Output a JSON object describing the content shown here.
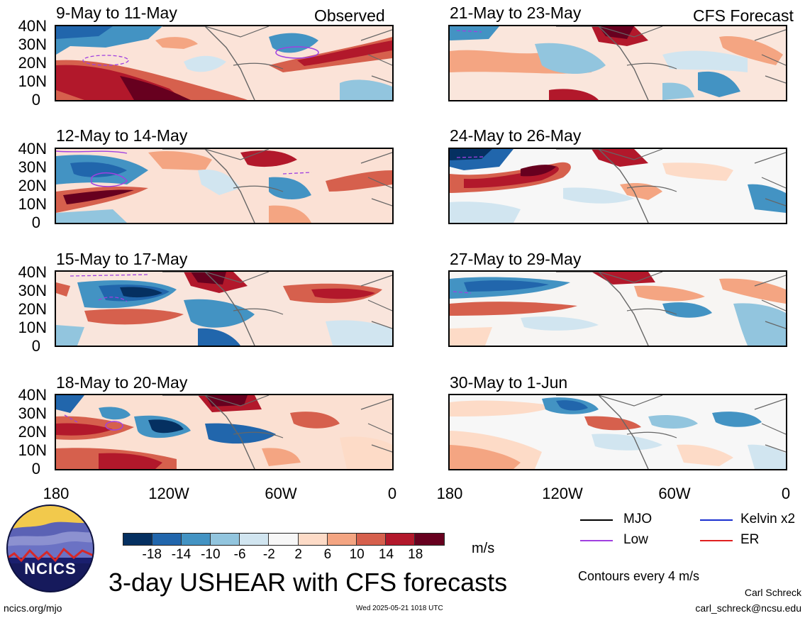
{
  "panels": [
    {
      "title": "9-May to 11-May",
      "tag": "Observed"
    },
    {
      "title": "21-May to 23-May",
      "tag": "CFS Forecast"
    },
    {
      "title": "12-May to 14-May",
      "tag": ""
    },
    {
      "title": "24-May to 26-May",
      "tag": ""
    },
    {
      "title": "15-May to 17-May",
      "tag": ""
    },
    {
      "title": "27-May to 29-May",
      "tag": ""
    },
    {
      "title": "18-May to 20-May",
      "tag": ""
    },
    {
      "title": "30-May to 1-Jun",
      "tag": ""
    }
  ],
  "lat_ticks": [
    "40N",
    "30N",
    "20N",
    "10N",
    "0"
  ],
  "lon_ticks": [
    "180",
    "120W",
    "60W",
    "0"
  ],
  "colorbar": {
    "colors": [
      "#053061",
      "#2166ac",
      "#4393c3",
      "#92c5de",
      "#d1e5f0",
      "#f7f7f7",
      "#fddbc7",
      "#f4a582",
      "#d6604d",
      "#b2182b",
      "#67001f"
    ],
    "labels": [
      "-18",
      "-14",
      "-10",
      "-6",
      "-2",
      "2",
      "6",
      "10",
      "14",
      "18"
    ],
    "unit": "m/s"
  },
  "legend": {
    "items": [
      {
        "label": "MJO",
        "color": "#000000"
      },
      {
        "label": "Kelvin x2",
        "color": "#1a2fd0"
      },
      {
        "label": "Low",
        "color": "#a040e0"
      },
      {
        "label": "ER",
        "color": "#e02020"
      }
    ],
    "contour_note": "Contours every 4 m/s"
  },
  "logo": {
    "text": "NCICS"
  },
  "main_title": "3-day USHEAR with CFS forecasts",
  "footer": {
    "url": "ncics.org/mjo",
    "timestamp": "Wed 2025-05-21 1018 UTC",
    "author": "Carl Schreck",
    "email": "carl_schreck@ncsu.edu"
  }
}
